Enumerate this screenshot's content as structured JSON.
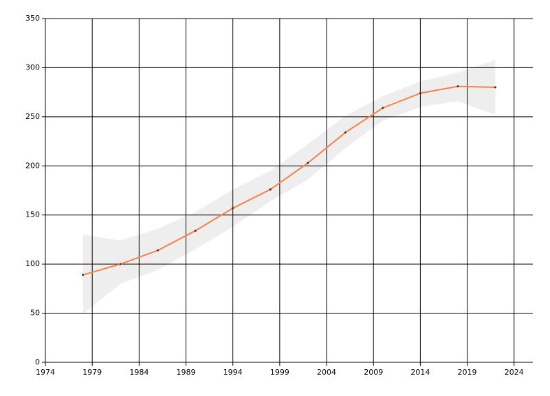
{
  "chart_data": {
    "type": "line",
    "x": [
      1978,
      1982,
      1986,
      1990,
      1994,
      1998,
      2002,
      2006,
      2010,
      2014,
      2018,
      2022
    ],
    "series": [
      {
        "color": "#ff7f3f",
        "values": [
          89,
          100,
          114,
          134,
          157,
          176,
          203,
          234,
          259,
          274,
          281,
          280
        ],
        "lower": [
          49,
          80,
          94,
          115,
          138,
          164,
          186,
          218,
          246,
          260,
          266,
          252
        ],
        "upper": [
          130,
          124,
          136,
          153,
          176,
          195,
          222,
          251,
          271,
          286,
          295,
          308
        ],
        "band_color": "#eeeeee"
      }
    ],
    "xlim": [
      1974,
      2026
    ],
    "xticks": [
      1974,
      1979,
      1984,
      1989,
      1994,
      1999,
      2004,
      2009,
      2014,
      2019,
      2024
    ],
    "ylim": [
      0,
      350
    ],
    "yticks": [
      0,
      50,
      100,
      150,
      200,
      250,
      300,
      350
    ],
    "grid": true
  }
}
